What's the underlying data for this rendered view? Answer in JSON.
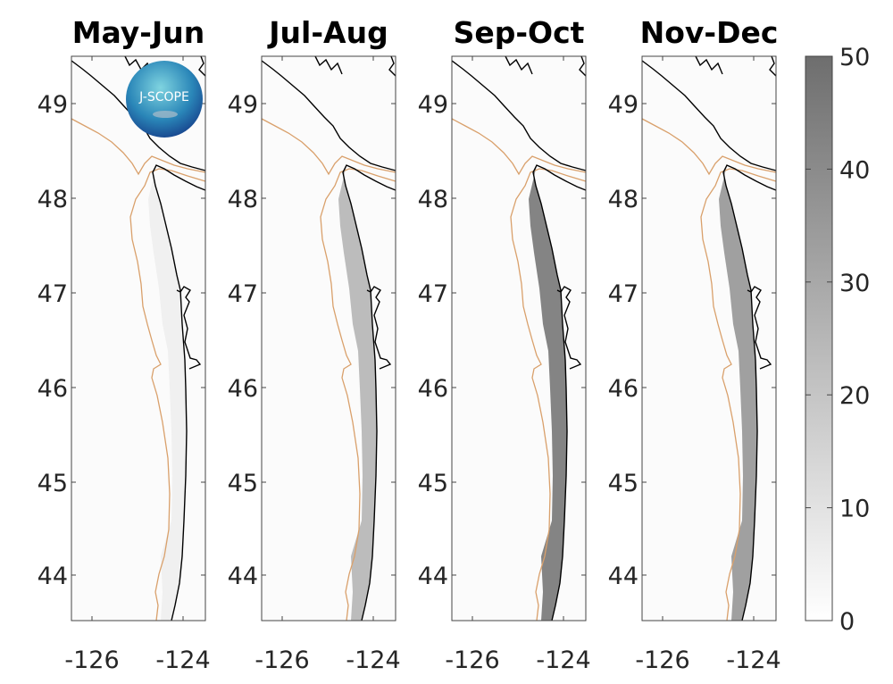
{
  "panels": [
    {
      "title": "May-Jun"
    },
    {
      "title": "Jul-Aug"
    },
    {
      "title": "Sep-Oct"
    },
    {
      "title": "Nov-Dec"
    }
  ],
  "y_ticks": [
    "49",
    "48",
    "47",
    "46",
    "45",
    "44"
  ],
  "x_ticks": [
    "-126",
    "-124"
  ],
  "colorbar": {
    "ticks": [
      "50",
      "40",
      "30",
      "20",
      "10",
      "0"
    ],
    "range": [
      0,
      50
    ],
    "colors": [
      "#ffffff",
      "#6e6e6e"
    ]
  },
  "logo_text": "J-SCOPE",
  "colors": {
    "contour": "#d9a06b",
    "coast": "#000000"
  }
}
